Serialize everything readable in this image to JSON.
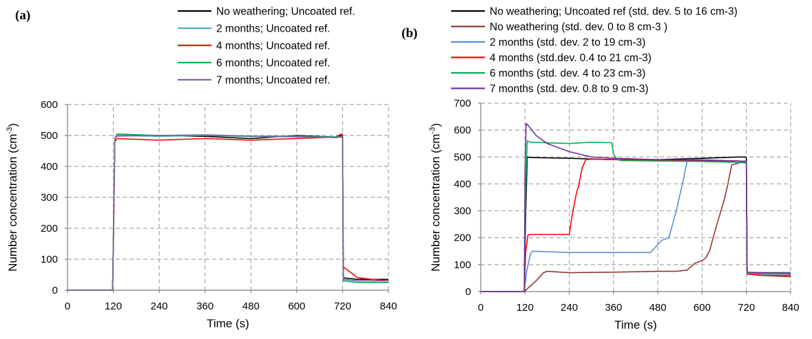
{
  "chart_data": [
    {
      "type": "line",
      "panel_label": "(a)",
      "xlabel": "Time (s)",
      "ylabel": "Number concentration (cm",
      "ylabel_sup": "-3",
      "ylabel_end": ")",
      "xlim": [
        0,
        840
      ],
      "ylim": [
        0,
        600
      ],
      "xticks": [
        "0",
        "120",
        "240",
        "360",
        "480",
        "600",
        "720",
        "840"
      ],
      "yticks": [
        "0",
        "100",
        "200",
        "300",
        "400",
        "500",
        "600"
      ],
      "grid": true,
      "legend_position": "top",
      "series": [
        {
          "name": "No weathering; Uncoated ref.",
          "color": "#000000",
          "x": [
            0,
            118,
            121,
            124,
            130,
            240,
            360,
            480,
            600,
            700,
            718,
            720,
            722,
            760,
            840
          ],
          "y": [
            0,
            0,
            250,
            490,
            500,
            500,
            497,
            490,
            500,
            495,
            500,
            495,
            40,
            35,
            35
          ]
        },
        {
          "name": "2 months; Uncoated ref.",
          "color": "#4bacc6",
          "x": [
            0,
            118,
            121,
            124,
            130,
            240,
            360,
            480,
            600,
            700,
            718,
            720,
            722,
            760,
            840
          ],
          "y": [
            0,
            0,
            230,
            490,
            500,
            497,
            500,
            497,
            495,
            495,
            495,
            490,
            35,
            30,
            30
          ]
        },
        {
          "name": "4 months; Uncoated ref.",
          "color": "#ff0000",
          "x": [
            0,
            118,
            121,
            124,
            130,
            240,
            360,
            480,
            600,
            700,
            718,
            720,
            722,
            760,
            840
          ],
          "y": [
            0,
            0,
            200,
            480,
            490,
            485,
            490,
            485,
            490,
            495,
            505,
            500,
            75,
            40,
            30
          ]
        },
        {
          "name": "6 months; Uncoated ref.",
          "color": "#00b050",
          "x": [
            0,
            118,
            121,
            124,
            130,
            240,
            360,
            480,
            600,
            700,
            718,
            720,
            722,
            760,
            840
          ],
          "y": [
            0,
            0,
            240,
            490,
            505,
            500,
            500,
            497,
            498,
            495,
            497,
            492,
            30,
            25,
            25
          ]
        },
        {
          "name": "7 months; Uncoated ref.",
          "color": "#8064a2",
          "x": [
            0,
            118,
            121,
            124,
            130,
            240,
            360,
            480,
            600,
            700,
            718,
            720,
            722,
            760,
            840
          ],
          "y": [
            0,
            0,
            220,
            490,
            498,
            500,
            502,
            498,
            497,
            493,
            495,
            490,
            35,
            30,
            30
          ]
        }
      ]
    },
    {
      "type": "line",
      "panel_label": "(b)",
      "xlabel": "Time (s)",
      "ylabel": "Number concentration (cm",
      "ylabel_sup": "-3",
      "ylabel_end": ")",
      "xlim": [
        0,
        840
      ],
      "ylim": [
        0,
        700
      ],
      "xticks": [
        "0",
        "120",
        "240",
        "360",
        "480",
        "600",
        "720",
        "840"
      ],
      "yticks": [
        "0",
        "100",
        "200",
        "300",
        "400",
        "500",
        "600",
        "700"
      ],
      "grid": true,
      "legend_position": "top",
      "series": [
        {
          "name": "No weathering; Uncoated ref (std. dev. 5 to 16 cm-3)",
          "color": "#000000",
          "x": [
            0,
            118,
            122,
            126,
            135,
            240,
            360,
            480,
            600,
            700,
            718,
            720,
            722,
            760,
            840
          ],
          "y": [
            0,
            0,
            300,
            500,
            498,
            495,
            490,
            490,
            495,
            500,
            500,
            495,
            70,
            70,
            70
          ]
        },
        {
          "name": "No weathering (std. dev. 0 to 8 cm-3 )",
          "color": "#943634",
          "x": [
            0,
            118,
            150,
            170,
            180,
            240,
            360,
            480,
            530,
            560,
            580,
            600,
            610,
            620,
            640,
            660,
            670,
            680,
            700,
            718,
            720,
            722,
            760,
            840
          ],
          "y": [
            0,
            0,
            40,
            70,
            75,
            70,
            72,
            75,
            75,
            80,
            105,
            115,
            125,
            150,
            250,
            340,
            400,
            470,
            478,
            485,
            480,
            65,
            60,
            55
          ]
        },
        {
          "name": "2 months (std. dev. 2 to 19 cm-3)",
          "color": "#558ed5",
          "x": [
            0,
            118,
            125,
            135,
            140,
            240,
            360,
            460,
            470,
            490,
            510,
            530,
            550,
            560,
            600,
            700,
            718,
            720,
            722,
            760,
            840
          ],
          "y": [
            0,
            0,
            80,
            140,
            150,
            145,
            145,
            145,
            160,
            190,
            200,
            300,
            420,
            490,
            490,
            485,
            485,
            480,
            65,
            65,
            65
          ]
        },
        {
          "name": "4 months (std.dev. 0.4 to 21 cm-3)",
          "color": "#ff0000",
          "x": [
            0,
            118,
            122,
            128,
            135,
            240,
            245,
            250,
            260,
            265,
            275,
            285,
            300,
            360,
            480,
            600,
            700,
            718,
            720,
            722,
            760,
            840
          ],
          "y": [
            0,
            0,
            150,
            210,
            212,
            212,
            260,
            300,
            370,
            390,
            460,
            490,
            492,
            490,
            488,
            485,
            485,
            480,
            475,
            65,
            60,
            60
          ]
        },
        {
          "name": "6 months (std. dev. 4 to 23 cm-3)",
          "color": "#00b050",
          "x": [
            0,
            118,
            122,
            126,
            135,
            240,
            300,
            355,
            360,
            370,
            380,
            480,
            600,
            700,
            718,
            720,
            722,
            760,
            840
          ],
          "y": [
            0,
            0,
            400,
            560,
            555,
            550,
            555,
            553,
            510,
            490,
            487,
            485,
            483,
            480,
            478,
            475,
            70,
            68,
            70
          ]
        },
        {
          "name": "7 months (std. dev. 0.8 to 9 cm-3)",
          "color": "#7030a0",
          "x": [
            0,
            118,
            120,
            123,
            130,
            150,
            180,
            240,
            300,
            360,
            480,
            600,
            700,
            718,
            720,
            722,
            760,
            840
          ],
          "y": [
            0,
            0,
            450,
            625,
            615,
            580,
            550,
            520,
            500,
            495,
            490,
            488,
            485,
            482,
            480,
            72,
            70,
            68
          ]
        }
      ]
    }
  ]
}
